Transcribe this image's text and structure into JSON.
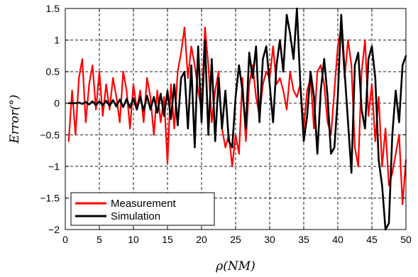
{
  "chart_data": {
    "type": "line",
    "title": "",
    "xlabel": "ρ(NM)",
    "ylabel": "Error(°)",
    "xlim": [
      0,
      50
    ],
    "ylim": [
      -2,
      1.5
    ],
    "xticks": [
      0,
      5,
      10,
      15,
      20,
      25,
      30,
      35,
      40,
      45,
      50
    ],
    "yticks": [
      -2,
      -1.5,
      -1,
      -0.5,
      0,
      0.5,
      1,
      1.5
    ],
    "xtick_labels": [
      "0",
      "5",
      "10",
      "15",
      "20",
      "25",
      "30",
      "35",
      "40",
      "45",
      "50"
    ],
    "ytick_labels": [
      "−2",
      "−1.5",
      "−1",
      "−0.5",
      "0",
      "0.5",
      "1",
      "1.5"
    ],
    "grid": true,
    "legend_position": "bottom-left",
    "series": [
      {
        "name": "Measurement",
        "color": "#ff0000",
        "x": [
          0.5,
          1.0,
          1.5,
          2.0,
          2.5,
          3.0,
          3.5,
          4.0,
          4.5,
          5.0,
          5.5,
          6.0,
          6.5,
          7.0,
          7.5,
          8.0,
          8.5,
          9.0,
          9.5,
          10.0,
          10.5,
          11.0,
          11.5,
          12.0,
          12.5,
          13.0,
          13.5,
          14.0,
          14.5,
          15.0,
          15.5,
          16.0,
          16.5,
          17.0,
          17.5,
          18.0,
          18.5,
          19.0,
          19.5,
          20.0,
          20.5,
          21.0,
          21.5,
          22.0,
          22.5,
          23.0,
          23.5,
          24.0,
          24.5,
          25.0,
          25.5,
          26.0,
          26.5,
          27.0,
          27.5,
          28.0,
          28.5,
          29.0,
          29.5,
          30.0,
          30.5,
          31.0,
          31.5,
          32.0,
          32.5,
          33.0,
          33.5,
          34.0,
          34.5,
          35.0,
          35.5,
          36.0,
          36.5,
          37.0,
          37.5,
          38.0,
          38.5,
          39.0,
          39.5,
          40.0,
          40.5,
          41.0,
          41.5,
          42.0,
          42.5,
          43.0,
          43.5,
          44.0,
          44.5,
          45.0,
          45.5,
          46.0,
          46.5,
          47.0,
          47.5,
          48.0,
          48.5,
          49.0,
          49.5,
          50.0
        ],
        "y": [
          -0.6,
          0.2,
          -0.5,
          0.4,
          0.7,
          -0.3,
          0.3,
          0.6,
          -0.1,
          0.5,
          -0.2,
          0.3,
          -0.1,
          0.4,
          0.1,
          -0.3,
          0.5,
          0.2,
          -0.4,
          0.3,
          -0.1,
          0.2,
          -0.3,
          0.4,
          0.1,
          -0.5,
          0.2,
          -0.3,
          0.1,
          -0.95,
          0.3,
          -0.4,
          0.5,
          0.8,
          1.2,
          0.4,
          0.9,
          0.6,
          0.2,
          -0.1,
          1.2,
          0.6,
          -0.3,
          0.2,
          0.5,
          -0.4,
          -0.7,
          -0.5,
          -1.0,
          -0.5,
          -0.8,
          0.4,
          -0.6,
          0.3,
          0.6,
          0.1,
          -0.2,
          0.3,
          0.5,
          0.4,
          0.9,
          0.3,
          0.4,
          0.2,
          -0.1,
          0.5,
          0.2,
          0.1,
          0.3,
          -0.4,
          0.2,
          0.4,
          -0.4,
          0.5,
          0.6,
          0.3,
          -0.3,
          -0.5,
          0.2,
          0.9,
          1.2,
          0.4,
          1.0,
          0.6,
          -0.7,
          -1.0,
          0.5,
          1.0,
          -0.2,
          0.3,
          -0.6,
          0.1,
          -1.0,
          -0.4,
          -1.3,
          -1.1,
          -0.8,
          -0.5,
          -1.6,
          -0.9
        ]
      },
      {
        "name": "Simulation",
        "color": "#000000",
        "x": [
          0.5,
          1.0,
          1.5,
          2.0,
          2.5,
          3.0,
          3.5,
          4.0,
          4.5,
          5.0,
          5.5,
          6.0,
          6.5,
          7.0,
          7.5,
          8.0,
          8.5,
          9.0,
          9.5,
          10.0,
          10.5,
          11.0,
          11.5,
          12.0,
          12.5,
          13.0,
          13.5,
          14.0,
          14.5,
          15.0,
          15.5,
          16.0,
          16.5,
          17.0,
          17.5,
          18.0,
          18.5,
          19.0,
          19.5,
          20.0,
          20.5,
          21.0,
          21.5,
          22.0,
          22.5,
          23.0,
          23.5,
          24.0,
          24.5,
          25.0,
          25.5,
          26.0,
          26.5,
          27.0,
          27.5,
          28.0,
          28.5,
          29.0,
          29.5,
          30.0,
          30.5,
          31.0,
          31.5,
          32.0,
          32.5,
          33.0,
          33.5,
          34.0,
          34.5,
          35.0,
          35.5,
          36.0,
          36.5,
          37.0,
          37.5,
          38.0,
          38.5,
          39.0,
          39.5,
          40.0,
          40.5,
          41.0,
          41.5,
          42.0,
          42.5,
          43.0,
          43.5,
          44.0,
          44.5,
          45.0,
          45.5,
          46.0,
          46.5,
          47.0,
          47.5,
          48.0,
          48.5,
          49.0,
          49.5,
          50.0
        ],
        "y": [
          0.0,
          0.0,
          0.0,
          0.01,
          -0.01,
          0.02,
          -0.02,
          0.03,
          -0.03,
          0.03,
          -0.03,
          0.04,
          -0.04,
          0.05,
          -0.05,
          0.06,
          -0.06,
          0.07,
          -0.07,
          0.08,
          -0.1,
          0.1,
          -0.12,
          0.12,
          -0.1,
          0.1,
          -0.15,
          0.15,
          -0.2,
          0.2,
          -0.25,
          0.3,
          -0.35,
          0.4,
          0.5,
          -0.4,
          0.6,
          -0.7,
          0.9,
          -0.3,
          1.0,
          -0.5,
          0.7,
          -0.6,
          0.4,
          -0.4,
          0.2,
          -0.6,
          -0.7,
          0.1,
          0.6,
          0.2,
          -0.4,
          0.8,
          0.4,
          0.9,
          -0.3,
          0.7,
          0.9,
          0.3,
          -0.3,
          0.6,
          1.0,
          0.5,
          1.4,
          1.1,
          0.7,
          1.5,
          0.3,
          -0.6,
          -0.2,
          0.5,
          0.1,
          -0.8,
          0.2,
          0.7,
          0.1,
          -0.8,
          -0.7,
          0.1,
          1.4,
          0.5,
          -0.3,
          -1.1,
          0.6,
          0.8,
          -0.1,
          -0.4,
          0.7,
          0.9,
          0.4,
          -0.9,
          -1.3,
          -2.0,
          -1.9,
          -0.5,
          0.2,
          -0.3,
          0.6,
          0.75
        ]
      }
    ]
  }
}
